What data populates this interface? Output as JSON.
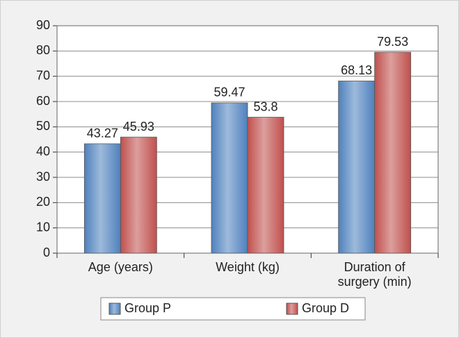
{
  "chart_data": {
    "type": "bar",
    "categories": [
      "Age (years)",
      "Weight (kg)",
      "Duration of surgery (min)"
    ],
    "series": [
      {
        "name": "Group P",
        "color": "#4f81bd",
        "values": [
          43.27,
          59.47,
          68.13
        ]
      },
      {
        "name": "Group D",
        "color": "#c0504d",
        "values": [
          45.93,
          53.8,
          79.53
        ]
      }
    ],
    "ylim": [
      0,
      90
    ],
    "yticks": [
      0,
      10,
      20,
      30,
      40,
      50,
      60,
      70,
      80,
      90
    ],
    "grid": true,
    "legend": "bottom"
  }
}
